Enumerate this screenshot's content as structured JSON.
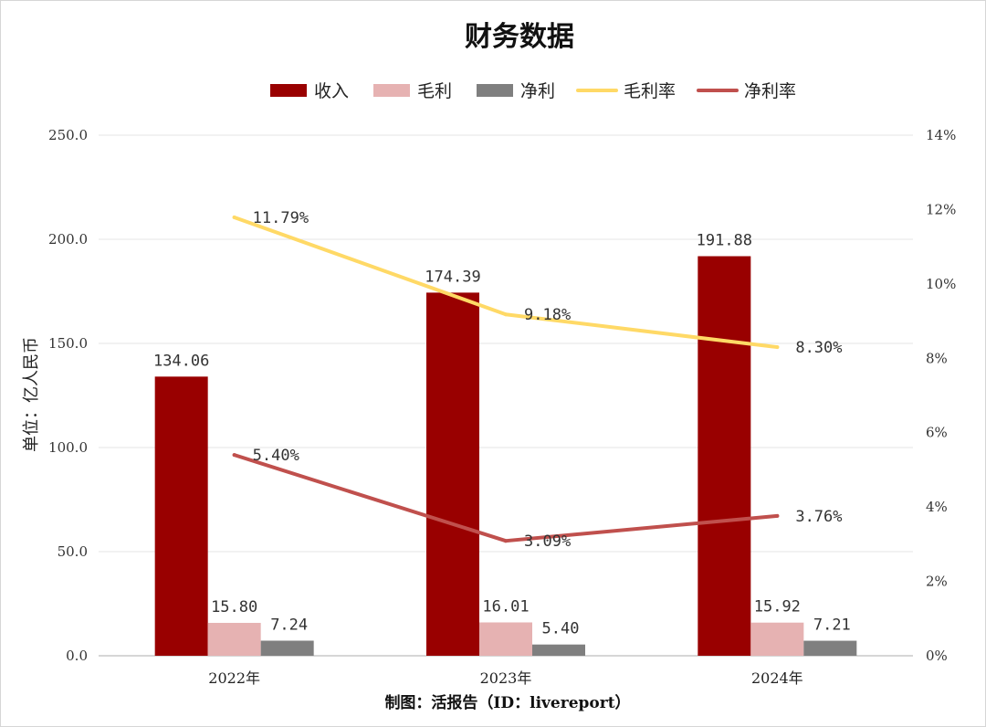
{
  "chart_data": {
    "type": "bar",
    "title": "财务数据",
    "ylabel": "单位：亿人民币",
    "credit": "制图：活报告（ID：livereport）",
    "categories": [
      "2022年",
      "2023年",
      "2024年"
    ],
    "ylim": [
      0,
      250
    ],
    "y_ticks": [
      "0.0",
      "50.0",
      "100.0",
      "150.0",
      "200.0",
      "250.0"
    ],
    "y2lim": [
      0,
      14
    ],
    "y2_ticks": [
      "0%",
      "2%",
      "4%",
      "6%",
      "8%",
      "10%",
      "12%",
      "14%"
    ],
    "grid": true,
    "legend_position": "top",
    "series": [
      {
        "name": "收入",
        "kind": "bar",
        "axis": "left",
        "color": "#990000",
        "values": [
          134.06,
          174.39,
          191.88
        ],
        "labels": [
          "134.06",
          "174.39",
          "191.88"
        ]
      },
      {
        "name": "毛利",
        "kind": "bar",
        "axis": "left",
        "color": "#e6b2b2",
        "values": [
          15.8,
          16.01,
          15.92
        ],
        "labels": [
          "15.80",
          "16.01",
          "15.92"
        ]
      },
      {
        "name": "净利",
        "kind": "bar",
        "axis": "left",
        "color": "#7f7f7f",
        "values": [
          7.24,
          5.4,
          7.21
        ],
        "labels": [
          "7.24",
          "5.40",
          "7.21"
        ]
      },
      {
        "name": "毛利率",
        "kind": "line",
        "axis": "right",
        "color": "#ffd966",
        "values": [
          11.79,
          9.18,
          8.3
        ],
        "labels": [
          "11.79%",
          "9.18%",
          "8.30%"
        ]
      },
      {
        "name": "净利率",
        "kind": "line",
        "axis": "right",
        "color": "#c0504d",
        "values": [
          5.4,
          3.09,
          3.76
        ],
        "labels": [
          "5.40%",
          "3.09%",
          "3.76%"
        ]
      }
    ]
  }
}
